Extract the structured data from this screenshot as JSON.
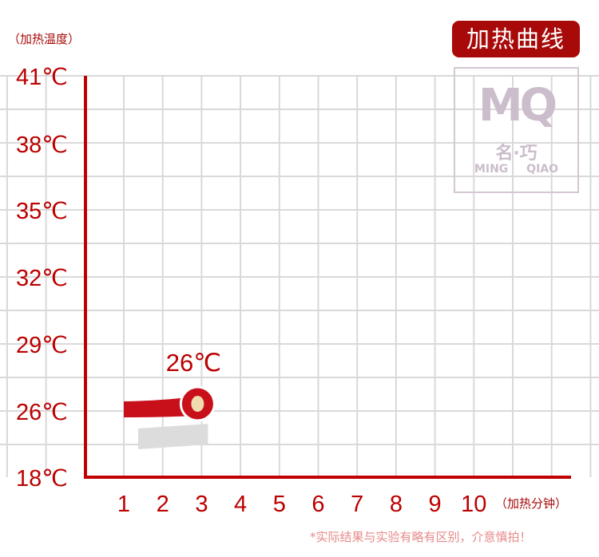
{
  "chart_data": {
    "type": "line",
    "title": "加热曲线",
    "ylabel": "（加热温度）",
    "xlabel": "（加热分钟）",
    "y_ticks": [
      "41℃",
      "38℃",
      "35℃",
      "32℃",
      "29℃",
      "26℃",
      "18℃"
    ],
    "x_ticks": [
      "1",
      "2",
      "3",
      "4",
      "5",
      "6",
      "7",
      "8",
      "9",
      "10"
    ],
    "series": [
      {
        "x": [
          1,
          3
        ],
        "y": [
          26,
          26
        ]
      }
    ],
    "annotation": {
      "x": 3,
      "y": 26,
      "text": "26℃"
    },
    "grid": true,
    "colors": {
      "accent": "#c8101a",
      "axis": "#c00000",
      "grid": "#d9d9d9",
      "shadow": "#dcdcdc",
      "marker_center": "#f0dcb0"
    }
  },
  "watermark": {
    "logo": "MQ",
    "cn": "名·巧",
    "en": "MING QIAO"
  },
  "note": "*实际结果与实验有略有区别，介意慎拍！"
}
